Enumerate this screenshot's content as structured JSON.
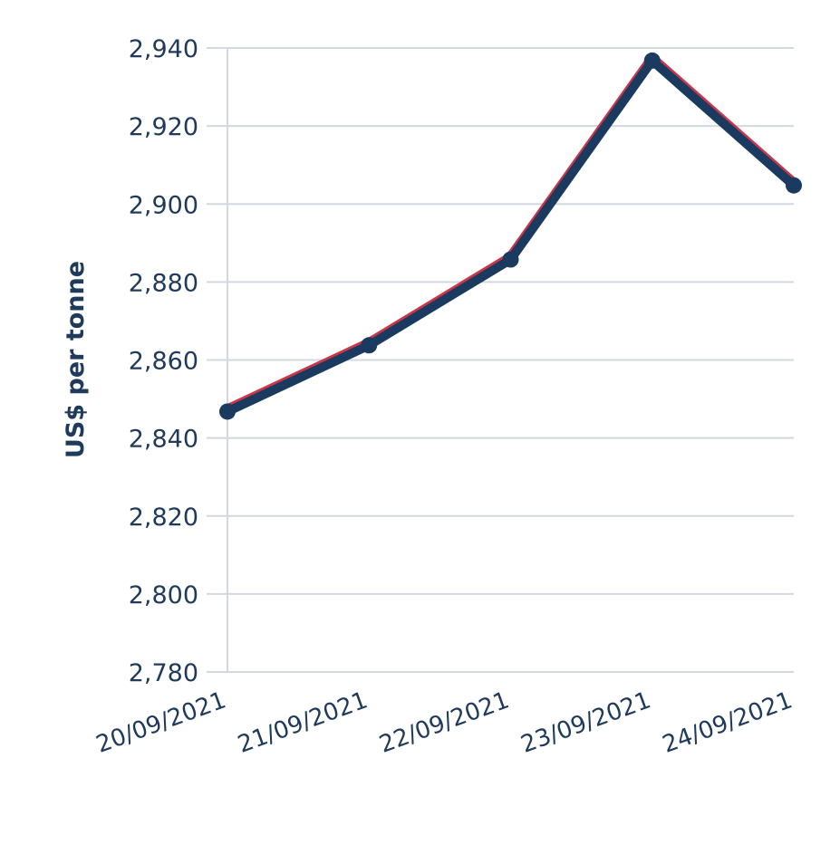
{
  "chart_data": {
    "type": "line",
    "title": "",
    "xlabel": "",
    "ylabel": "US$ per tonne",
    "categories": [
      "20/09/2021",
      "21/09/2021",
      "22/09/2021",
      "23/09/2021",
      "24/09/2021"
    ],
    "series": [
      {
        "values": [
          2847,
          2864,
          2886,
          2937,
          2905
        ],
        "color": "#1a3a5f"
      }
    ],
    "ylim": [
      2780,
      2940
    ],
    "yticks": [
      2780,
      2800,
      2820,
      2840,
      2860,
      2880,
      2900,
      2920,
      2940
    ],
    "ytick_labels": [
      "2,780",
      "2,800",
      "2,820",
      "2,840",
      "2,860",
      "2,880",
      "2,900",
      "2,920",
      "2,940"
    ],
    "grid": true,
    "legend": "none",
    "colors": {
      "line": "#1a3a5f",
      "line_edge": "#c8374a",
      "grid": "#d3d8e0",
      "text": "#1f3a5a"
    }
  }
}
